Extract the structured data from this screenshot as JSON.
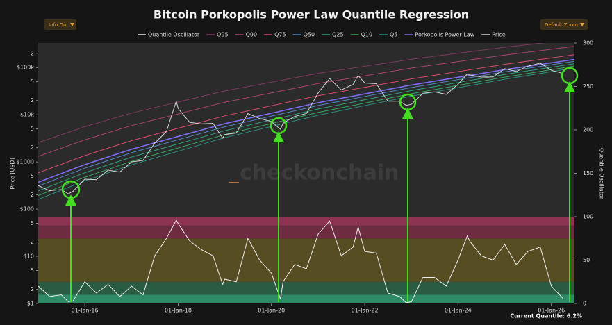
{
  "chart_data": {
    "type": "line",
    "title": "Bitcoin Porkopolis Power Law Quantile Regression",
    "buttons": [
      "Info On",
      "Default Zoom"
    ],
    "y_label": "Price [USD]",
    "y2_label": "Quantile Oscillator",
    "watermark": "checkonchain",
    "current_quantile_label": "Current Quantile: 6.2%",
    "ylog": true,
    "grid": false,
    "xlim": [
      "2015-01-01",
      "2026-07-01"
    ],
    "xticks": [
      {
        "value": "2016-01-01",
        "label": "01-Jan-16"
      },
      {
        "value": "2018-01-01",
        "label": "01-Jan-18"
      },
      {
        "value": "2020-01-01",
        "label": "01-Jan-20"
      },
      {
        "value": "2022-01-01",
        "label": "01-Jan-22"
      },
      {
        "value": "2024-01-01",
        "label": "01-Jan-24"
      },
      {
        "value": "2026-01-01",
        "label": "01-Jan-26"
      }
    ],
    "ylim": [
      1,
      330000
    ],
    "yticks": [
      {
        "value": 1,
        "label": "$1"
      },
      2,
      5,
      {
        "value": 10,
        "label": "$10"
      },
      {
        "value": 20,
        "label": "2"
      },
      {
        "value": 50,
        "label": "5"
      },
      {
        "value": 100,
        "label": "$100"
      },
      {
        "value": 200,
        "label": "2"
      },
      {
        "value": 500,
        "label": "5"
      },
      {
        "value": 1000,
        "label": "$1000"
      },
      {
        "value": 2000,
        "label": "2"
      },
      {
        "value": 5000,
        "label": "5"
      },
      {
        "value": 10000,
        "label": "$10k"
      },
      {
        "value": 20000,
        "label": "2"
      },
      {
        "value": 50000,
        "label": "5"
      },
      {
        "value": 100000,
        "label": "$100k"
      },
      {
        "value": 200000,
        "label": "2"
      }
    ],
    "y2lim": [
      0,
      300
    ],
    "y2ticks": [
      0,
      50,
      100,
      150,
      200,
      250,
      300
    ],
    "bands": [
      {
        "from": 0,
        "to": 10,
        "color": "#2e8a64"
      },
      {
        "from": 10,
        "to": 25,
        "color": "#2a5c44"
      },
      {
        "from": 25,
        "to": 75,
        "color": "#574d22"
      },
      {
        "from": 75,
        "to": 90,
        "color": "#6e2c40"
      },
      {
        "from": 90,
        "to": 100,
        "color": "#8c3452"
      }
    ],
    "x": [
      "2015-01-01",
      "2015-04-01",
      "2015-07-01",
      "2015-08-25",
      "2015-10-01",
      "2016-01-01",
      "2016-04-01",
      "2016-07-01",
      "2016-10-01",
      "2017-01-01",
      "2017-04-01",
      "2017-07-01",
      "2017-10-01",
      "2017-12-17",
      "2018-01-01",
      "2018-04-01",
      "2018-07-01",
      "2018-10-01",
      "2018-12-15",
      "2019-01-01",
      "2019-04-01",
      "2019-07-01",
      "2019-10-01",
      "2020-01-01",
      "2020-03-12",
      "2020-04-01",
      "2020-07-01",
      "2020-10-01",
      "2021-01-01",
      "2021-04-01",
      "2021-07-01",
      "2021-10-01",
      "2021-11-10",
      "2022-01-01",
      "2022-04-01",
      "2022-07-01",
      "2022-10-01",
      "2022-11-21",
      "2023-01-01",
      "2023-04-01",
      "2023-07-01",
      "2023-10-01",
      "2024-01-01",
      "2024-03-14",
      "2024-04-01",
      "2024-07-01",
      "2024-10-01",
      "2025-01-01",
      "2025-04-01",
      "2025-07-01",
      "2025-10-06",
      "2026-01-01",
      "2026-04-01"
    ],
    "series": [
      {
        "name": "Quantile Oscillator",
        "color": "#eeeeee",
        "axis": "y2",
        "values": [
          20,
          8,
          10,
          2,
          3,
          25,
          12,
          22,
          8,
          20,
          10,
          55,
          75,
          96,
          92,
          72,
          62,
          55,
          22,
          28,
          25,
          75,
          50,
          35,
          5,
          25,
          45,
          40,
          80,
          95,
          55,
          65,
          88,
          60,
          58,
          12,
          8,
          1,
          2,
          30,
          30,
          20,
          50,
          78,
          72,
          55,
          50,
          68,
          45,
          60,
          65,
          20,
          6
        ]
      },
      {
        "name": "Price",
        "color": "#d6d6d6",
        "values": [
          315,
          245,
          260,
          210,
          240,
          430,
          420,
          670,
          610,
          1000,
          1080,
          2500,
          4400,
          19300,
          13500,
          6900,
          6400,
          6600,
          3200,
          3800,
          4100,
          10600,
          8300,
          7200,
          4900,
          6600,
          9200,
          10600,
          29000,
          58700,
          33500,
          43800,
          67500,
          47000,
          45500,
          19300,
          19400,
          15800,
          16600,
          28500,
          30600,
          27000,
          44200,
          73000,
          69700,
          62700,
          63300,
          94400,
          82500,
          107000,
          124000,
          87500,
          75000
        ]
      }
    ],
    "model_x": [
      "2015-01-01",
      "2016-01-01",
      "2017-01-01",
      "2019-01-01",
      "2021-01-01",
      "2023-01-01",
      "2025-01-01",
      "2026-07-01"
    ],
    "quantiles": [
      {
        "name": "Q95",
        "color": "#7c3a62",
        "values": [
          2560,
          5580,
          10840,
          32000,
          75200,
          150300,
          269000,
          392000
        ]
      },
      {
        "name": "Q90",
        "color": "#a8446e",
        "values": [
          1312,
          2944,
          5890,
          18410,
          45800,
          97300,
          184500,
          280500
        ]
      },
      {
        "name": "Q75",
        "color": "#d84a6c",
        "values": [
          586,
          1361,
          2825,
          9460,
          25290,
          57410,
          117000,
          187500
        ]
      },
      {
        "name": "Q50",
        "color": "#4f86c0",
        "values": [
          308,
          735,
          1567,
          5560,
          15700,
          37760,
          81280,
          135800
        ]
      },
      {
        "name": "Q25",
        "color": "#2fa07a",
        "values": [
          244,
          590,
          1271,
          4592,
          13240,
          32510,
          71290,
          121100
        ]
      },
      {
        "name": "Q10",
        "color": "#3aa860",
        "values": [
          194,
          473,
          1028,
          3802,
          11170,
          27930,
          62660,
          107900
        ]
      },
      {
        "name": "Q5",
        "color": "#2a8c7c",
        "values": [
          161,
          396,
          869,
          3266,
          9750,
          24770,
          56490,
          98400
        ]
      },
      {
        "name": "Porkopolis Power Law",
        "color": "#7b6cf2",
        "values": [
          370,
          877,
          1855,
          6475,
          17990,
          42580,
          90150,
          148900
        ]
      }
    ]
  }
}
